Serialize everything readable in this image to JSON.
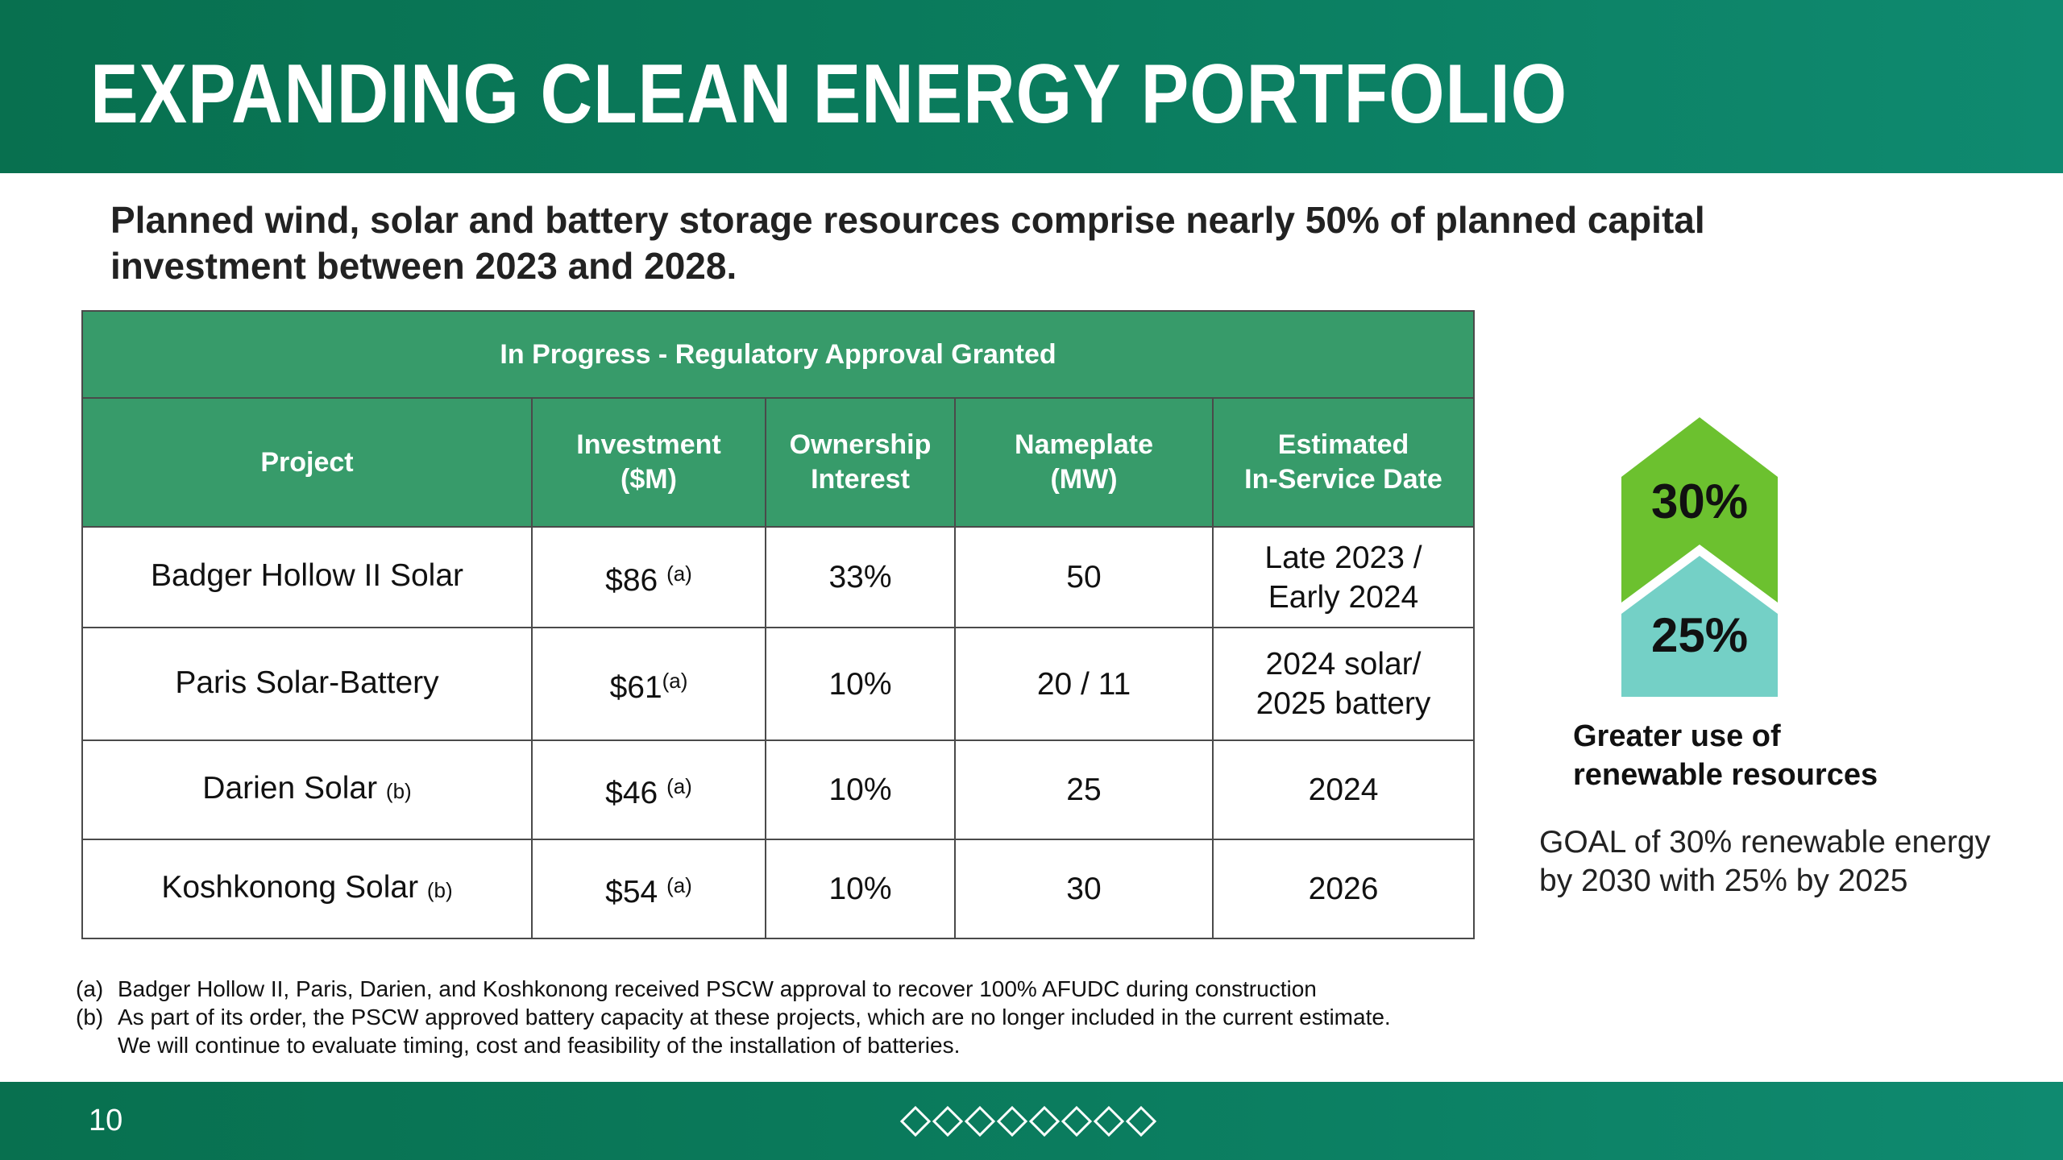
{
  "header": {
    "title": "EXPANDING CLEAN ENERGY PORTFOLIO"
  },
  "subtitle": "Planned wind, solar and battery storage resources comprise nearly 50% of planned capital investment between 2023 and 2028.",
  "table": {
    "band_title": "In Progress - Regulatory Approval Granted",
    "columns": [
      {
        "line1": "Project",
        "line2": ""
      },
      {
        "line1": "Investment",
        "line2": "($M)"
      },
      {
        "line1": "Ownership",
        "line2": "Interest"
      },
      {
        "line1": "Nameplate",
        "line2": "(MW)"
      },
      {
        "line1": "Estimated",
        "line2": "In-Service Date"
      }
    ],
    "rows": [
      {
        "project": "Badger Hollow II Solar",
        "project_note": "",
        "investment": "$86 ",
        "investment_note": "(a)",
        "ownership": "33%",
        "nameplate": "50",
        "date_line1": "Late 2023 /",
        "date_line2": "Early 2024"
      },
      {
        "project": "Paris Solar-Battery",
        "project_note": "",
        "investment": "$61",
        "investment_note": "(a)",
        "ownership": "10%",
        "nameplate": "20 / 11",
        "date_line1": "2024 solar/",
        "date_line2": "2025 battery"
      },
      {
        "project": "Darien Solar ",
        "project_note": "(b)",
        "investment": "$46 ",
        "investment_note": "(a)",
        "ownership": "10%",
        "nameplate": "25",
        "date_line1": "2024",
        "date_line2": ""
      },
      {
        "project": "Koshkonong Solar ",
        "project_note": "(b)",
        "investment": "$54 ",
        "investment_note": "(a)",
        "ownership": "10%",
        "nameplate": "30",
        "date_line1": "2026",
        "date_line2": ""
      }
    ]
  },
  "goal_graphic": {
    "upper_pct": "30%",
    "lower_pct": "25%",
    "upper_color": "#6cc12f",
    "lower_color": "#74d0c6",
    "heading_line1": "Greater use of",
    "heading_line2": "renewable resources",
    "goal_line1": "GOAL of 30% renewable energy",
    "goal_line2": "by 2030 with 25% by 2025"
  },
  "footnotes": [
    {
      "mark": "(a)",
      "lines": [
        "Badger Hollow II, Paris, Darien, and Koshkonong received PSCW approval to recover 100% AFUDC during construction"
      ]
    },
    {
      "mark": "(b)",
      "lines": [
        "As part of its order, the PSCW approved battery capacity at these projects, which are no longer included in the current estimate.",
        "We will continue to evaluate timing, cost and feasibility of the installation of batteries."
      ]
    }
  ],
  "footer": {
    "page_number": "10",
    "decoration_icon": "diamond-row-icon",
    "diamond_count": 8
  },
  "colors": {
    "brand_green": "#0b7d5f",
    "table_header": "#379b6a"
  }
}
